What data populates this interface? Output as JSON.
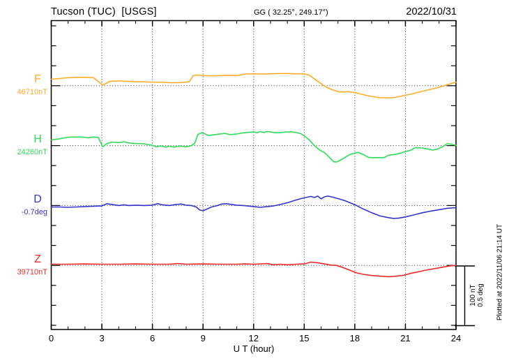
{
  "header": {
    "station": "Tucson (TUC)  [USGS]",
    "coords": "GG ( 32.25°, 249.17°)",
    "date": "2022/10/31"
  },
  "footer": {
    "plotted_note": "Plotted at 2022/11/06 21:14 UT"
  },
  "scalebar": {
    "nt_label": "100 nT",
    "deg_label": "0.5 deg"
  },
  "chart_data": {
    "type": "line",
    "title": "Tucson (TUC) [USGS] magnetogram 2022/10/31",
    "xlabel": "U T (hour)",
    "x_range": [
      0,
      24
    ],
    "x_ticks": [
      0,
      3,
      6,
      9,
      12,
      15,
      18,
      21,
      24
    ],
    "x_minor_tick_every": 1,
    "grid": "dotted vertical every 3h, dotted horizontal at each baseline",
    "scale": {
      "nT_per_division": 100,
      "deg_per_division": 0.5
    },
    "series": [
      {
        "id": "F",
        "label": "F",
        "unit": "nT",
        "baseline_value": 46710,
        "baseline_label": "46710nT",
        "color": "#FFAD29",
        "points": [
          [
            0,
            11
          ],
          [
            0.5,
            12
          ],
          [
            1,
            13.5
          ],
          [
            1.5,
            14
          ],
          [
            2,
            14
          ],
          [
            2.5,
            13.5
          ],
          [
            3.05,
            1
          ],
          [
            3.5,
            7.5
          ],
          [
            4,
            8
          ],
          [
            4.5,
            7.5
          ],
          [
            5,
            6.5
          ],
          [
            5.5,
            6.5
          ],
          [
            6,
            6
          ],
          [
            6.5,
            6
          ],
          [
            7,
            5
          ],
          [
            7.5,
            5
          ],
          [
            8,
            6
          ],
          [
            8.2,
            7
          ],
          [
            8.4,
            16.5
          ],
          [
            8.6,
            18
          ],
          [
            9,
            17
          ],
          [
            9.5,
            16.5
          ],
          [
            10,
            17
          ],
          [
            10.5,
            17.5
          ],
          [
            11,
            17
          ],
          [
            11.5,
            19.5
          ],
          [
            12,
            20
          ],
          [
            12.5,
            19.5
          ],
          [
            13,
            20
          ],
          [
            13.5,
            20.5
          ],
          [
            14,
            20.5
          ],
          [
            14.5,
            20
          ],
          [
            15,
            20
          ],
          [
            15.3,
            17.5
          ],
          [
            15.7,
            9.5
          ],
          [
            16,
            3.5
          ],
          [
            16.3,
            -2.5
          ],
          [
            16.7,
            -7
          ],
          [
            17,
            -10
          ],
          [
            17.3,
            -10.5
          ],
          [
            17.6,
            -10
          ],
          [
            18,
            -11.5
          ],
          [
            18.5,
            -15
          ],
          [
            19,
            -18
          ],
          [
            19.5,
            -20
          ],
          [
            20,
            -20.5
          ],
          [
            20.4,
            -19.5
          ],
          [
            21,
            -16
          ],
          [
            21.5,
            -13
          ],
          [
            22,
            -9.5
          ],
          [
            22.5,
            -6
          ],
          [
            23,
            -2.5
          ],
          [
            23.3,
            0
          ],
          [
            23.6,
            2.5
          ],
          [
            24,
            6
          ]
        ]
      },
      {
        "id": "H",
        "label": "H",
        "unit": "nT",
        "baseline_value": 24260,
        "baseline_label": "24260nT",
        "color": "#2EDC58",
        "points": [
          [
            0,
            9.5
          ],
          [
            0.5,
            11.5
          ],
          [
            1,
            14
          ],
          [
            1.5,
            14.5
          ],
          [
            2,
            14
          ],
          [
            2.2,
            13
          ],
          [
            2.5,
            14.5
          ],
          [
            2.8,
            13.5
          ],
          [
            3.05,
            -2
          ],
          [
            3.3,
            3.5
          ],
          [
            3.6,
            6
          ],
          [
            4,
            5
          ],
          [
            4.3,
            6.5
          ],
          [
            4.6,
            4.5
          ],
          [
            5,
            3.5
          ],
          [
            5.5,
            3
          ],
          [
            6,
            0.5
          ],
          [
            6.2,
            -2
          ],
          [
            6.5,
            -0.5
          ],
          [
            6.8,
            -2.5
          ],
          [
            7,
            -1
          ],
          [
            7.3,
            -2.5
          ],
          [
            7.6,
            -0.5
          ],
          [
            8,
            -2
          ],
          [
            8.3,
            0
          ],
          [
            8.5,
            3.5
          ],
          [
            8.7,
            18.5
          ],
          [
            8.9,
            21.5
          ],
          [
            9.1,
            20
          ],
          [
            9.3,
            17
          ],
          [
            9.6,
            18
          ],
          [
            10,
            19.5
          ],
          [
            10.3,
            20.5
          ],
          [
            10.6,
            18.5
          ],
          [
            11,
            19.5
          ],
          [
            11.3,
            21
          ],
          [
            11.6,
            22
          ],
          [
            12,
            23
          ],
          [
            12.2,
            21.5
          ],
          [
            12.4,
            23.5
          ],
          [
            12.6,
            22
          ],
          [
            12.8,
            23.5
          ],
          [
            13,
            23
          ],
          [
            13.3,
            21.5
          ],
          [
            13.6,
            22
          ],
          [
            14,
            23
          ],
          [
            14.3,
            23
          ],
          [
            14.6,
            21.5
          ],
          [
            14.8,
            20
          ],
          [
            15,
            16.5
          ],
          [
            15.3,
            9.5
          ],
          [
            15.6,
            0
          ],
          [
            15.9,
            -7
          ],
          [
            16.05,
            -9.5
          ],
          [
            16.2,
            -11.5
          ],
          [
            16.5,
            -20
          ],
          [
            16.75,
            -27
          ],
          [
            16.9,
            -27.5
          ],
          [
            17.1,
            -25
          ],
          [
            17.4,
            -20
          ],
          [
            17.7,
            -15
          ],
          [
            18,
            -12.5
          ],
          [
            18.2,
            -11.5
          ],
          [
            18.5,
            -15
          ],
          [
            18.8,
            -19.5
          ],
          [
            19.1,
            -20.5
          ],
          [
            19.4,
            -20
          ],
          [
            19.7,
            -20.5
          ],
          [
            20,
            -16
          ],
          [
            20.3,
            -15
          ],
          [
            20.6,
            -13.5
          ],
          [
            21,
            -10
          ],
          [
            21.3,
            -8
          ],
          [
            21.6,
            -3.5
          ],
          [
            22,
            -4
          ],
          [
            22.3,
            -5.5
          ],
          [
            22.6,
            -7.5
          ],
          [
            22.9,
            -6
          ],
          [
            23.2,
            -2
          ],
          [
            23.5,
            3.5
          ],
          [
            23.7,
            2.5
          ],
          [
            24,
            0.5
          ]
        ]
      },
      {
        "id": "D",
        "label": "D",
        "unit": "deg",
        "baseline_value": -0.7,
        "baseline_label": "-0.7deg",
        "color": "#3434CE",
        "points": [
          [
            0,
            -0.012
          ],
          [
            0.5,
            -0.012
          ],
          [
            1,
            -0.015
          ],
          [
            1.5,
            -0.012
          ],
          [
            2,
            -0.009
          ],
          [
            2.5,
            -0.006
          ],
          [
            3,
            -0.003
          ],
          [
            3.3,
            0.015
          ],
          [
            3.6,
            0.009
          ],
          [
            4,
            0
          ],
          [
            4.3,
            0.006
          ],
          [
            4.6,
            0
          ],
          [
            5,
            0.003
          ],
          [
            5.5,
            0
          ],
          [
            6,
            0.003
          ],
          [
            6.3,
            0.015
          ],
          [
            6.6,
            0.006
          ],
          [
            7,
            0
          ],
          [
            7.4,
            0.009
          ],
          [
            7.7,
            0.012
          ],
          [
            8,
            0.003
          ],
          [
            8.3,
            0
          ],
          [
            8.6,
            -0.012
          ],
          [
            8.8,
            -0.038
          ],
          [
            9,
            -0.044
          ],
          [
            9.2,
            -0.032
          ],
          [
            9.5,
            -0.012
          ],
          [
            9.8,
            -0.003
          ],
          [
            10.1,
            0.012
          ],
          [
            10.4,
            0.015
          ],
          [
            10.7,
            0.009
          ],
          [
            11,
            0.003
          ],
          [
            11.4,
            0
          ],
          [
            11.8,
            -0.006
          ],
          [
            12,
            -0.009
          ],
          [
            12.4,
            -0.015
          ],
          [
            12.8,
            -0.009
          ],
          [
            13.2,
            -0.003
          ],
          [
            13.6,
            0.009
          ],
          [
            14,
            0.023
          ],
          [
            14.4,
            0.041
          ],
          [
            14.8,
            0.058
          ],
          [
            15.1,
            0.067
          ],
          [
            15.4,
            0.076
          ],
          [
            15.6,
            0.067
          ],
          [
            15.8,
            0.079
          ],
          [
            16,
            0.056
          ],
          [
            16.2,
            0.073
          ],
          [
            16.4,
            0.079
          ],
          [
            16.6,
            0.073
          ],
          [
            17,
            0.058
          ],
          [
            17.4,
            0.041
          ],
          [
            17.8,
            0.018
          ],
          [
            18.1,
            0
          ],
          [
            18.5,
            -0.029
          ],
          [
            19,
            -0.061
          ],
          [
            19.5,
            -0.088
          ],
          [
            20,
            -0.102
          ],
          [
            20.3,
            -0.108
          ],
          [
            20.6,
            -0.105
          ],
          [
            21,
            -0.096
          ],
          [
            21.5,
            -0.079
          ],
          [
            22,
            -0.061
          ],
          [
            22.5,
            -0.047
          ],
          [
            23,
            -0.035
          ],
          [
            23.5,
            -0.023
          ],
          [
            24,
            -0.018
          ]
        ]
      },
      {
        "id": "Z",
        "label": "Z",
        "unit": "nT",
        "baseline_value": 39710,
        "baseline_label": "39710nT",
        "color": "#EE2A2A",
        "points": [
          [
            0,
            2
          ],
          [
            1,
            2
          ],
          [
            2,
            2.5
          ],
          [
            3,
            2
          ],
          [
            4,
            2
          ],
          [
            5,
            2.5
          ],
          [
            6,
            2
          ],
          [
            7,
            2
          ],
          [
            7.5,
            3
          ],
          [
            8,
            2
          ],
          [
            9,
            2.5
          ],
          [
            10,
            2
          ],
          [
            11,
            2
          ],
          [
            11.5,
            2.5
          ],
          [
            12,
            2
          ],
          [
            12.8,
            3
          ],
          [
            13.2,
            1
          ],
          [
            13.6,
            2
          ],
          [
            14,
            1
          ],
          [
            14.5,
            2
          ],
          [
            15,
            2.5
          ],
          [
            15.4,
            5.5
          ],
          [
            15.8,
            4.5
          ],
          [
            16.2,
            2.5
          ],
          [
            16.6,
            0.5
          ],
          [
            16.9,
            0
          ],
          [
            17.3,
            -3.5
          ],
          [
            17.7,
            -8
          ],
          [
            18.1,
            -12.5
          ],
          [
            18.5,
            -15
          ],
          [
            19,
            -17
          ],
          [
            19.5,
            -18
          ],
          [
            20,
            -19
          ],
          [
            20.5,
            -18
          ],
          [
            20.9,
            -16.5
          ],
          [
            21.3,
            -13.5
          ],
          [
            21.8,
            -10.5
          ],
          [
            22.2,
            -8
          ],
          [
            22.7,
            -5.5
          ],
          [
            23.2,
            -3
          ],
          [
            23.6,
            -1
          ],
          [
            24,
            0
          ]
        ]
      }
    ]
  }
}
